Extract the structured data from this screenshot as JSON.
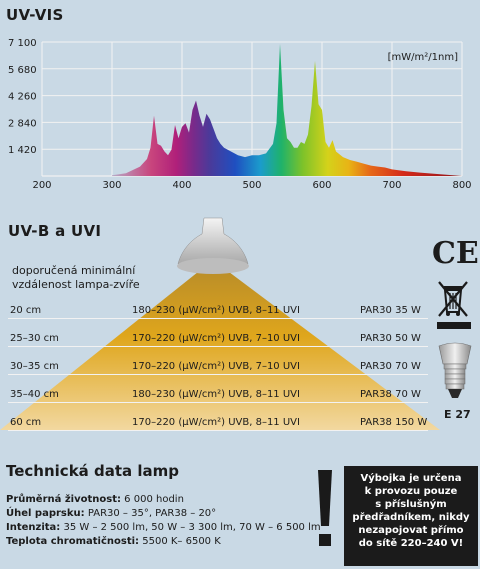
{
  "uvvis": {
    "title": "UV-VIS",
    "unit_label": "[mW/m²/1nm]"
  },
  "chart_data": {
    "type": "area",
    "title": "UV-VIS",
    "ylabel": "[mW/m²/1nm]",
    "xlim": [
      200,
      800
    ],
    "ylim": [
      0,
      7100
    ],
    "x_ticks": [
      "200",
      "300",
      "400",
      "500",
      "600",
      "700",
      "800"
    ],
    "y_ticks": [
      "1 420",
      "2 840",
      "4 260",
      "5 680",
      "7 100"
    ],
    "y_tick_values": [
      1420,
      2840,
      4260,
      5680,
      7100
    ],
    "grid": true,
    "series": [
      {
        "x": [
          300,
          320,
          340,
          350,
          355,
          360,
          365,
          370,
          375,
          380,
          385,
          390,
          395,
          400,
          405,
          410,
          415,
          420,
          425,
          430,
          435,
          440,
          445,
          450,
          455,
          460,
          470,
          480,
          490,
          500,
          510,
          520,
          530,
          535,
          540,
          545,
          550,
          555,
          560,
          565,
          570,
          575,
          580,
          585,
          590,
          595,
          600,
          605,
          610,
          615,
          620,
          630,
          640,
          650,
          660,
          670,
          680,
          690,
          700,
          720,
          740,
          760,
          780,
          800
        ],
        "y": [
          40,
          150,
          500,
          900,
          1500,
          3200,
          1700,
          1600,
          1300,
          1100,
          1400,
          2700,
          2000,
          2600,
          2800,
          2300,
          3500,
          4000,
          3200,
          2600,
          3300,
          3000,
          2500,
          2000,
          1700,
          1500,
          1300,
          1100,
          1000,
          1100,
          1100,
          1200,
          1700,
          2800,
          7000,
          3500,
          2000,
          1800,
          1500,
          1500,
          1800,
          1700,
          2200,
          3700,
          6100,
          3800,
          3500,
          1800,
          1500,
          1900,
          1300,
          1000,
          850,
          750,
          650,
          550,
          500,
          450,
          350,
          250,
          180,
          120,
          60,
          0
        ]
      }
    ]
  },
  "uvb": {
    "title": "UV-B a UVI",
    "distance_label_line1": "doporučená minimální",
    "distance_label_line2": "vzdálenost lampa-zvíře",
    "rows": [
      {
        "distance": "20 cm",
        "spec": "180–230 (µW/cm²) UVB, 8–11 UVI",
        "lamp": "PAR30  35 W"
      },
      {
        "distance": "25–30 cm",
        "spec": "170–220 (µW/cm²) UVB, 7–10 UVI",
        "lamp": "PAR30  50 W"
      },
      {
        "distance": "30–35 cm",
        "spec": "170–220 (µW/cm²) UVB, 7–10 UVI",
        "lamp": "PAR30  70 W"
      },
      {
        "distance": "35–40 cm",
        "spec": "180–230 (µW/cm²) UVB, 8–11 UVI",
        "lamp": "PAR38  70 W"
      },
      {
        "distance": "60 cm",
        "spec": "170–220 (µW/cm²) UVB, 8–11 UVI",
        "lamp": "PAR38  150 W"
      }
    ]
  },
  "icons": {
    "ce": "CE",
    "e27": "E 27"
  },
  "tech": {
    "title": "Technická data lamp",
    "specs": [
      {
        "label": "Průměrná životnost:",
        "value": " 6 000 hodin"
      },
      {
        "label": "Úhel paprsku:",
        "value": " PAR30 – 35°, PAR38 – 20°"
      },
      {
        "label": "Intenzita:",
        "value": " 35 W – 2 500 lm, 50 W – 3 300 lm, 70 W – 6 500 lm"
      },
      {
        "label": "Teplota chromatičnosti:",
        "value": " 5500 K– 6500 K"
      }
    ]
  },
  "warning": {
    "lines": [
      "Výbojka je určena",
      "k provozu pouze",
      "s příslušným",
      "předřadníkem, nikdy",
      "nezapojovat přímo",
      "do sítě 220–240 V!"
    ]
  }
}
